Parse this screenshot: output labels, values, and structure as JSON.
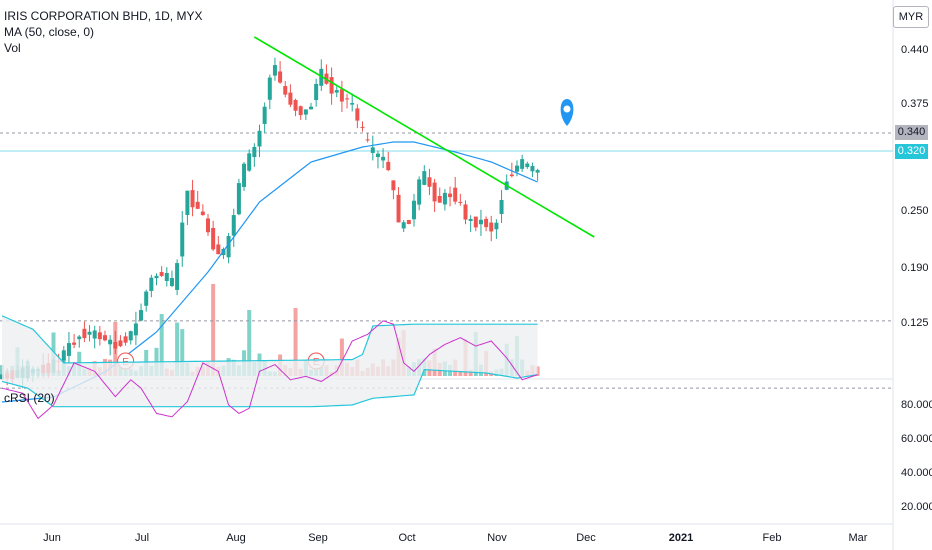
{
  "header": {
    "symbol_line": "IRIS CORPORATION BHD, 1D, MYX",
    "ma_line": "MA (50, close, 0)",
    "vol_line": "Vol",
    "currency": "MYR"
  },
  "rsi_panel": {
    "label": "cRSI (20)",
    "ticks": [
      "80.000",
      "60.000",
      "40.000",
      "20.000"
    ]
  },
  "price_tags": {
    "resistance": "0.340",
    "last": "0.320"
  },
  "colors": {
    "up": "#26a69a",
    "down": "#ef5350",
    "ma": "#2196f3",
    "trend": "#00e600",
    "rsi": "#cc33cc",
    "band": "#26c6da",
    "marker": "#2196f3"
  },
  "icons": [
    "earnings-marker-icon",
    "location-pin-icon"
  ],
  "chart_data": {
    "type": "candlestick",
    "price_axis_ticks": [
      "0.440",
      "0.375",
      "0.340",
      "0.250",
      "0.190",
      "0.125"
    ],
    "time_axis_ticks": [
      "Jun",
      "Jul",
      "Aug",
      "Sep",
      "Oct",
      "Nov",
      "Dec",
      "2021",
      "Feb",
      "Mar"
    ],
    "earnings_markers": [
      "E",
      "E"
    ],
    "price_anchors": [
      [
        0,
        0.115
      ],
      [
        10,
        0.125
      ],
      [
        16,
        0.16
      ],
      [
        20,
        0.155
      ],
      [
        22,
        0.145
      ],
      [
        26,
        0.16
      ],
      [
        29,
        0.21
      ],
      [
        31,
        0.22
      ],
      [
        34,
        0.205
      ],
      [
        36,
        0.3
      ],
      [
        39,
        0.28
      ],
      [
        42,
        0.24
      ],
      [
        44,
        0.24
      ],
      [
        47,
        0.32
      ],
      [
        50,
        0.35
      ],
      [
        53,
        0.43
      ],
      [
        55,
        0.4
      ],
      [
        58,
        0.38
      ],
      [
        60,
        0.38
      ],
      [
        62,
        0.42
      ],
      [
        65,
        0.4
      ],
      [
        68,
        0.39
      ],
      [
        72,
        0.34
      ],
      [
        75,
        0.33
      ],
      [
        78,
        0.26
      ],
      [
        80,
        0.28
      ],
      [
        82,
        0.32
      ],
      [
        85,
        0.29
      ],
      [
        88,
        0.3
      ],
      [
        91,
        0.27
      ],
      [
        94,
        0.27
      ],
      [
        96,
        0.26
      ],
      [
        98,
        0.31
      ],
      [
        101,
        0.33
      ],
      [
        104,
        0.32
      ]
    ],
    "ma_anchors": [
      [
        0,
        0.09
      ],
      [
        10,
        0.095
      ],
      [
        20,
        0.12
      ],
      [
        30,
        0.16
      ],
      [
        40,
        0.22
      ],
      [
        50,
        0.29
      ],
      [
        60,
        0.33
      ],
      [
        70,
        0.345
      ],
      [
        76,
        0.35
      ],
      [
        80,
        0.35
      ],
      [
        88,
        0.34
      ],
      [
        95,
        0.33
      ],
      [
        104,
        0.31
      ]
    ],
    "trendline": {
      "start": [
        49,
        0.455
      ],
      "end": [
        115,
        0.255
      ]
    },
    "resistance_level": 0.34,
    "last_price": 0.32,
    "rsi_anchors": [
      [
        0,
        70
      ],
      [
        4,
        73
      ],
      [
        7,
        88
      ],
      [
        10,
        80
      ],
      [
        14,
        55
      ],
      [
        18,
        60
      ],
      [
        22,
        75
      ],
      [
        25,
        65
      ],
      [
        27,
        70
      ],
      [
        30,
        85
      ],
      [
        33,
        87
      ],
      [
        36,
        78
      ],
      [
        39,
        55
      ],
      [
        42,
        60
      ],
      [
        44,
        80
      ],
      [
        46,
        85
      ],
      [
        48,
        82
      ],
      [
        50,
        60
      ],
      [
        53,
        56
      ],
      [
        56,
        65
      ],
      [
        59,
        63
      ],
      [
        62,
        66
      ],
      [
        65,
        60
      ],
      [
        68,
        42
      ],
      [
        71,
        38
      ],
      [
        74,
        30
      ],
      [
        76,
        32
      ],
      [
        78,
        55
      ],
      [
        80,
        60
      ],
      [
        83,
        50
      ],
      [
        86,
        44
      ],
      [
        89,
        40
      ],
      [
        92,
        45
      ],
      [
        95,
        42
      ],
      [
        98,
        52
      ],
      [
        101,
        65
      ],
      [
        104,
        62
      ]
    ],
    "rsi_upper_band": [
      [
        0,
        66
      ],
      [
        5,
        70
      ],
      [
        10,
        81
      ],
      [
        40,
        81
      ],
      [
        60,
        81
      ],
      [
        68,
        80
      ],
      [
        72,
        76
      ],
      [
        80,
        74
      ],
      [
        82,
        59
      ],
      [
        94,
        61
      ],
      [
        100,
        64
      ],
      [
        104,
        62
      ]
    ],
    "rsi_lower_band": [
      [
        0,
        27
      ],
      [
        6,
        35
      ],
      [
        12,
        55
      ],
      [
        40,
        54
      ],
      [
        68,
        53
      ],
      [
        70,
        50
      ],
      [
        72,
        33
      ],
      [
        80,
        32
      ],
      [
        104,
        32
      ]
    ],
    "rsi_ref_levels": [
      70,
      30
    ],
    "volume_seed": 7
  }
}
